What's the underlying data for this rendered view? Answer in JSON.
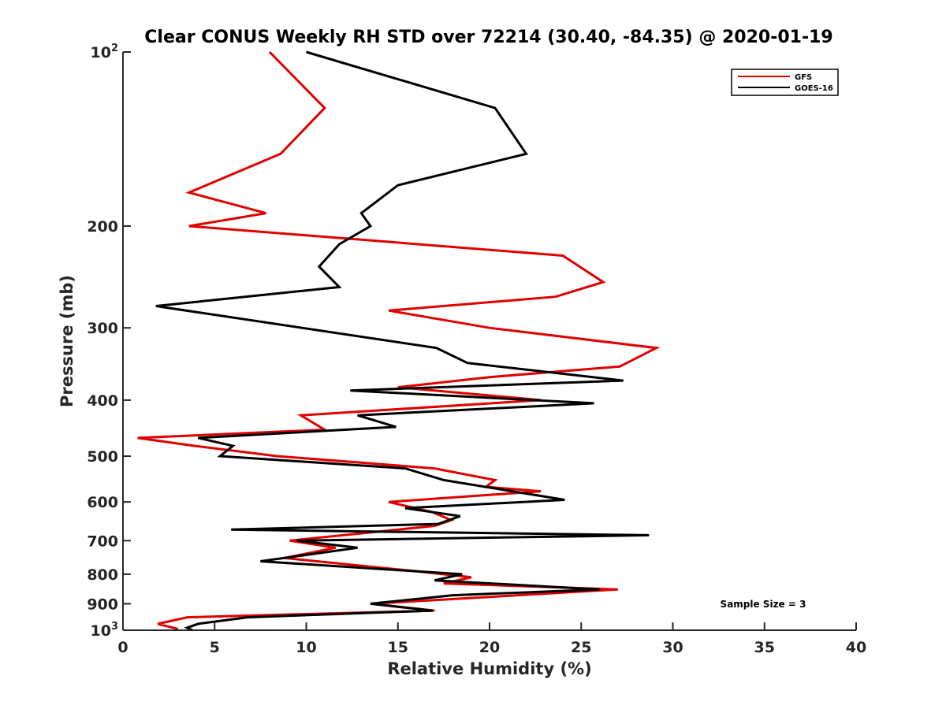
{
  "chart_data": {
    "type": "line",
    "title": "Clear CONUS Weekly RH STD over 72214 (30.40, -84.35) @ 2020-01-19",
    "xlabel": "Relative Humidity (%)",
    "ylabel": "Pressure (mb)",
    "xlim": [
      0,
      40
    ],
    "ylim": [
      100,
      1000
    ],
    "yscale": "log",
    "yreversed": true,
    "x_ticks": [
      0,
      5,
      10,
      15,
      20,
      25,
      30,
      35,
      40
    ],
    "x_tick_labels": [
      "0",
      "5",
      "10",
      "15",
      "20",
      "25",
      "30",
      "35",
      "40"
    ],
    "y_ticks": [
      100,
      200,
      300,
      400,
      500,
      600,
      700,
      800,
      900,
      1000
    ],
    "y_tick_labels": [
      {
        "base": "10",
        "sup": "2"
      },
      {
        "base": "200",
        "sup": ""
      },
      {
        "base": "300",
        "sup": ""
      },
      {
        "base": "400",
        "sup": ""
      },
      {
        "base": "500",
        "sup": ""
      },
      {
        "base": "600",
        "sup": ""
      },
      {
        "base": "700",
        "sup": ""
      },
      {
        "base": "800",
        "sup": ""
      },
      {
        "base": "900",
        "sup": ""
      },
      {
        "base": "10",
        "sup": "3"
      }
    ],
    "legend_position": "top-right",
    "annotation": "Sample Size = 3",
    "series": [
      {
        "name": "GFS",
        "color": "#e00000",
        "points": [
          [
            8.0,
            100
          ],
          [
            11.0,
            125
          ],
          [
            8.6,
            150
          ],
          [
            3.6,
            175
          ],
          [
            7.8,
            190
          ],
          [
            3.6,
            200
          ],
          [
            24.0,
            225
          ],
          [
            26.2,
            250
          ],
          [
            23.6,
            265
          ],
          [
            14.5,
            280
          ],
          [
            20.0,
            300
          ],
          [
            29.1,
            325
          ],
          [
            27.1,
            350
          ],
          [
            20.0,
            365
          ],
          [
            15.0,
            380
          ],
          [
            22.8,
            400
          ],
          [
            9.7,
            425
          ],
          [
            11.0,
            450
          ],
          [
            0.8,
            465
          ],
          [
            3.9,
            480
          ],
          [
            8.4,
            500
          ],
          [
            17.0,
            525
          ],
          [
            20.3,
            550
          ],
          [
            19.8,
            565
          ],
          [
            22.8,
            575
          ],
          [
            14.5,
            600
          ],
          [
            16.9,
            625
          ],
          [
            17.9,
            645
          ],
          [
            17.0,
            660
          ],
          [
            9.1,
            700
          ],
          [
            11.6,
            720
          ],
          [
            8.8,
            750
          ],
          [
            15.9,
            790
          ],
          [
            19.0,
            810
          ],
          [
            17.5,
            830
          ],
          [
            27.0,
            850
          ],
          [
            13.6,
            900
          ],
          [
            17.0,
            925
          ],
          [
            3.5,
            950
          ],
          [
            1.9,
            975
          ],
          [
            3.0,
            995
          ]
        ]
      },
      {
        "name": "GOES-16",
        "color": "#000000",
        "points": [
          [
            10.0,
            100
          ],
          [
            20.3,
            125
          ],
          [
            22.0,
            150
          ],
          [
            15.0,
            170
          ],
          [
            13.0,
            190
          ],
          [
            13.5,
            200
          ],
          [
            11.8,
            215
          ],
          [
            10.7,
            235
          ],
          [
            11.8,
            255
          ],
          [
            1.8,
            275
          ],
          [
            17.1,
            325
          ],
          [
            18.8,
            345
          ],
          [
            27.3,
            370
          ],
          [
            12.4,
            385
          ],
          [
            25.7,
            405
          ],
          [
            12.8,
            425
          ],
          [
            14.9,
            445
          ],
          [
            4.1,
            465
          ],
          [
            6.0,
            480
          ],
          [
            5.3,
            500
          ],
          [
            15.4,
            525
          ],
          [
            17.5,
            550
          ],
          [
            24.1,
            595
          ],
          [
            15.4,
            615
          ],
          [
            18.4,
            635
          ],
          [
            17.2,
            655
          ],
          [
            5.9,
            670
          ],
          [
            28.7,
            685
          ],
          [
            9.5,
            700
          ],
          [
            12.8,
            720
          ],
          [
            7.5,
            760
          ],
          [
            18.5,
            800
          ],
          [
            17.0,
            820
          ],
          [
            26.0,
            850
          ],
          [
            18.0,
            870
          ],
          [
            13.5,
            900
          ],
          [
            16.9,
            925
          ],
          [
            6.8,
            950
          ],
          [
            4.1,
            975
          ],
          [
            3.5,
            990
          ],
          [
            3.8,
            1000
          ]
        ]
      }
    ]
  }
}
